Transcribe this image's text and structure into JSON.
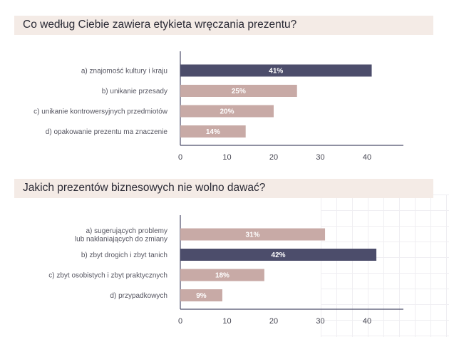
{
  "colors": {
    "highlight": "#4c4d6b",
    "normal": "#c8aaa6",
    "axis": "#4c4d6b",
    "header_bg": "#f4ebe6"
  },
  "chart_data": [
    {
      "type": "bar",
      "orientation": "horizontal",
      "title": "Co według Ciebie zawiera etykieta wręczania prezentu?",
      "categories": [
        "a) znajomość kultury i kraju",
        "b) unikanie przesady",
        "c) unikanie kontrowersyjnych przedmiotów",
        "d) opakowanie prezentu ma znaczenie"
      ],
      "values": [
        41,
        25,
        20,
        14
      ],
      "value_labels": [
        "41%",
        "25%",
        "20%",
        "14%"
      ],
      "highlight_index": 0,
      "xlim": [
        0,
        48
      ],
      "xticks": [
        "0",
        "10",
        "20",
        "30",
        "40"
      ],
      "grid": false
    },
    {
      "type": "bar",
      "orientation": "horizontal",
      "title": "Jakich prezentów biznesowych nie wolno dawać?",
      "categories": [
        "a) sugerujących problemy\nlub nakłaniających do zmiany",
        "b) zbyt drogich i zbyt tanich",
        "c) zbyt osobistych i zbyt praktycznych",
        "d) przypadkowych"
      ],
      "values": [
        31,
        42,
        18,
        9
      ],
      "value_labels": [
        "31%",
        "42%",
        "18%",
        "9%"
      ],
      "highlight_index": 1,
      "xlim": [
        0,
        48
      ],
      "xticks": [
        "0",
        "10",
        "20",
        "30",
        "40"
      ],
      "grid": false
    }
  ]
}
